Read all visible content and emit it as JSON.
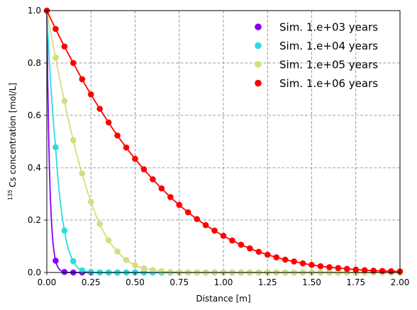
{
  "chart_data": {
    "type": "line",
    "title": "",
    "xlabel": "Distance [m]",
    "ylabel_sup": "135",
    "ylabel": "Cs concentration [mol/L]",
    "xlim": [
      0.0,
      2.0
    ],
    "ylim": [
      0.0,
      1.0
    ],
    "xticks": [
      0.0,
      0.25,
      0.5,
      0.75,
      1.0,
      1.25,
      1.5,
      1.75,
      2.0
    ],
    "xtick_labels": [
      "0.00",
      "0.25",
      "0.50",
      "0.75",
      "1.00",
      "1.25",
      "1.50",
      "1.75",
      "2.00"
    ],
    "yticks": [
      0.0,
      0.2,
      0.4,
      0.6,
      0.8,
      1.0
    ],
    "ytick_labels": [
      "0.0",
      "0.2",
      "0.4",
      "0.6",
      "0.8",
      "1.0"
    ],
    "grid": true,
    "grid_style": "dashed",
    "legend_position": "top-right",
    "marker_x": [
      0.0,
      0.05,
      0.1,
      0.15,
      0.2,
      0.25,
      0.3,
      0.35,
      0.4,
      0.45,
      0.5,
      0.55,
      0.6,
      0.65,
      0.7,
      0.75,
      0.8,
      0.85,
      0.9,
      0.95,
      1.0,
      1.05,
      1.1,
      1.15,
      1.2,
      1.25,
      1.3,
      1.35,
      1.4,
      1.45,
      1.5,
      1.55,
      1.6,
      1.65,
      1.7,
      1.75,
      1.8,
      1.85,
      1.9,
      1.95,
      2.0
    ],
    "series": [
      {
        "name": "Sim. 1.e+03 years",
        "color": "#8000ff",
        "markers": [
          1.0,
          0.045,
          0.002,
          0.0,
          0.0,
          0.0,
          0.0,
          0.0,
          0.0,
          0.0,
          0.0,
          0.0,
          0.0,
          0.0,
          0.0,
          0.0,
          0.0,
          0.0,
          0.0,
          0.0,
          0.0,
          0.0,
          0.0,
          0.0,
          0.0,
          0.0,
          0.0,
          0.0,
          0.0,
          0.0,
          0.0,
          0.0,
          0.0,
          0.0,
          0.0,
          0.0,
          0.0,
          0.0,
          0.0,
          0.0,
          0.0
        ]
      },
      {
        "name": "Sim. 1.e+04 years",
        "color": "#2adddd",
        "markers": [
          1.0,
          0.478,
          0.16,
          0.043,
          0.008,
          0.002,
          0.0,
          0.0,
          0.0,
          0.0,
          0.0,
          0.0,
          0.0,
          0.0,
          0.0,
          0.0,
          0.0,
          0.0,
          0.0,
          0.0,
          0.0,
          0.0,
          0.0,
          0.0,
          0.0,
          0.0,
          0.0,
          0.0,
          0.0,
          0.0,
          0.0,
          0.0,
          0.0,
          0.0,
          0.0,
          0.0,
          0.0,
          0.0,
          0.0,
          0.0,
          0.0
        ]
      },
      {
        "name": "Sim. 1.e+05 years",
        "color": "#d4dd80",
        "markers": [
          1.0,
          0.82,
          0.655,
          0.505,
          0.378,
          0.27,
          0.185,
          0.123,
          0.08,
          0.048,
          0.028,
          0.016,
          0.009,
          0.005,
          0.002,
          0.001,
          0.0,
          0.0,
          0.0,
          0.0,
          0.0,
          0.0,
          0.0,
          0.0,
          0.0,
          0.0,
          0.0,
          0.0,
          0.0,
          0.0,
          0.0,
          0.0,
          0.0,
          0.0,
          0.0,
          0.0,
          0.0,
          0.0,
          0.0,
          0.0,
          0.0
        ]
      },
      {
        "name": "Sim. 1.e+06 years",
        "color": "#ff0000",
        "markers": [
          1.0,
          0.93,
          0.863,
          0.8,
          0.738,
          0.68,
          0.625,
          0.573,
          0.523,
          0.477,
          0.434,
          0.394,
          0.356,
          0.321,
          0.288,
          0.258,
          0.23,
          0.204,
          0.181,
          0.16,
          0.14,
          0.122,
          0.106,
          0.092,
          0.079,
          0.068,
          0.058,
          0.049,
          0.042,
          0.035,
          0.029,
          0.024,
          0.02,
          0.017,
          0.014,
          0.011,
          0.009,
          0.007,
          0.006,
          0.005,
          0.004
        ]
      }
    ]
  }
}
